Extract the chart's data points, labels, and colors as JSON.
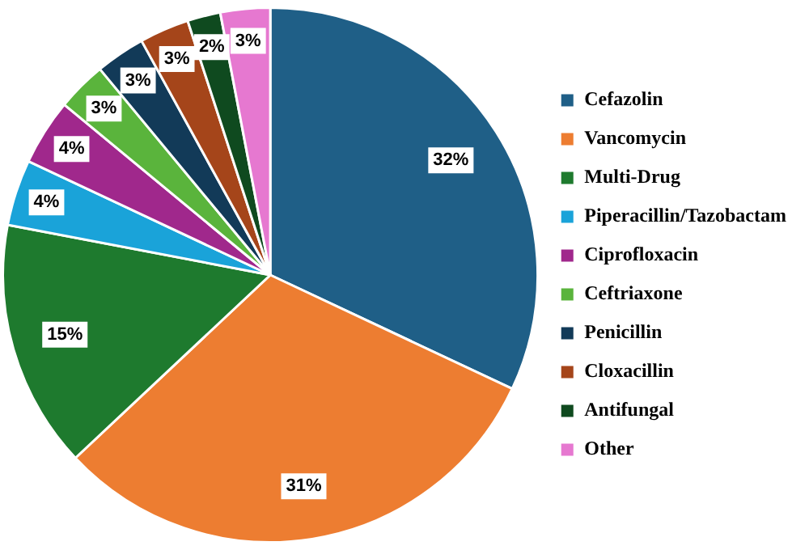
{
  "chart_data": {
    "type": "pie",
    "categories": [
      "Cefazolin",
      "Vancomycin",
      "Multi-Drug",
      "Piperacillin/Tazobactam",
      "Ciprofloxacin",
      "Ceftriaxone",
      "Penicillin",
      "Cloxacillin",
      "Antifungal",
      "Other"
    ],
    "values": [
      32,
      31,
      15,
      4,
      4,
      3,
      3,
      3,
      2,
      3
    ],
    "value_labels": [
      "32%",
      "31%",
      "15%",
      "4%",
      "4%",
      "3%",
      "3%",
      "3%",
      "2%",
      "3%"
    ],
    "colors": [
      "#1f5f87",
      "#ed7d31",
      "#1e7a2e",
      "#1aa3d9",
      "#a0288c",
      "#5ab43c",
      "#123a58",
      "#a5451a",
      "#0f4a1f",
      "#e678d0"
    ],
    "legend": "right"
  }
}
